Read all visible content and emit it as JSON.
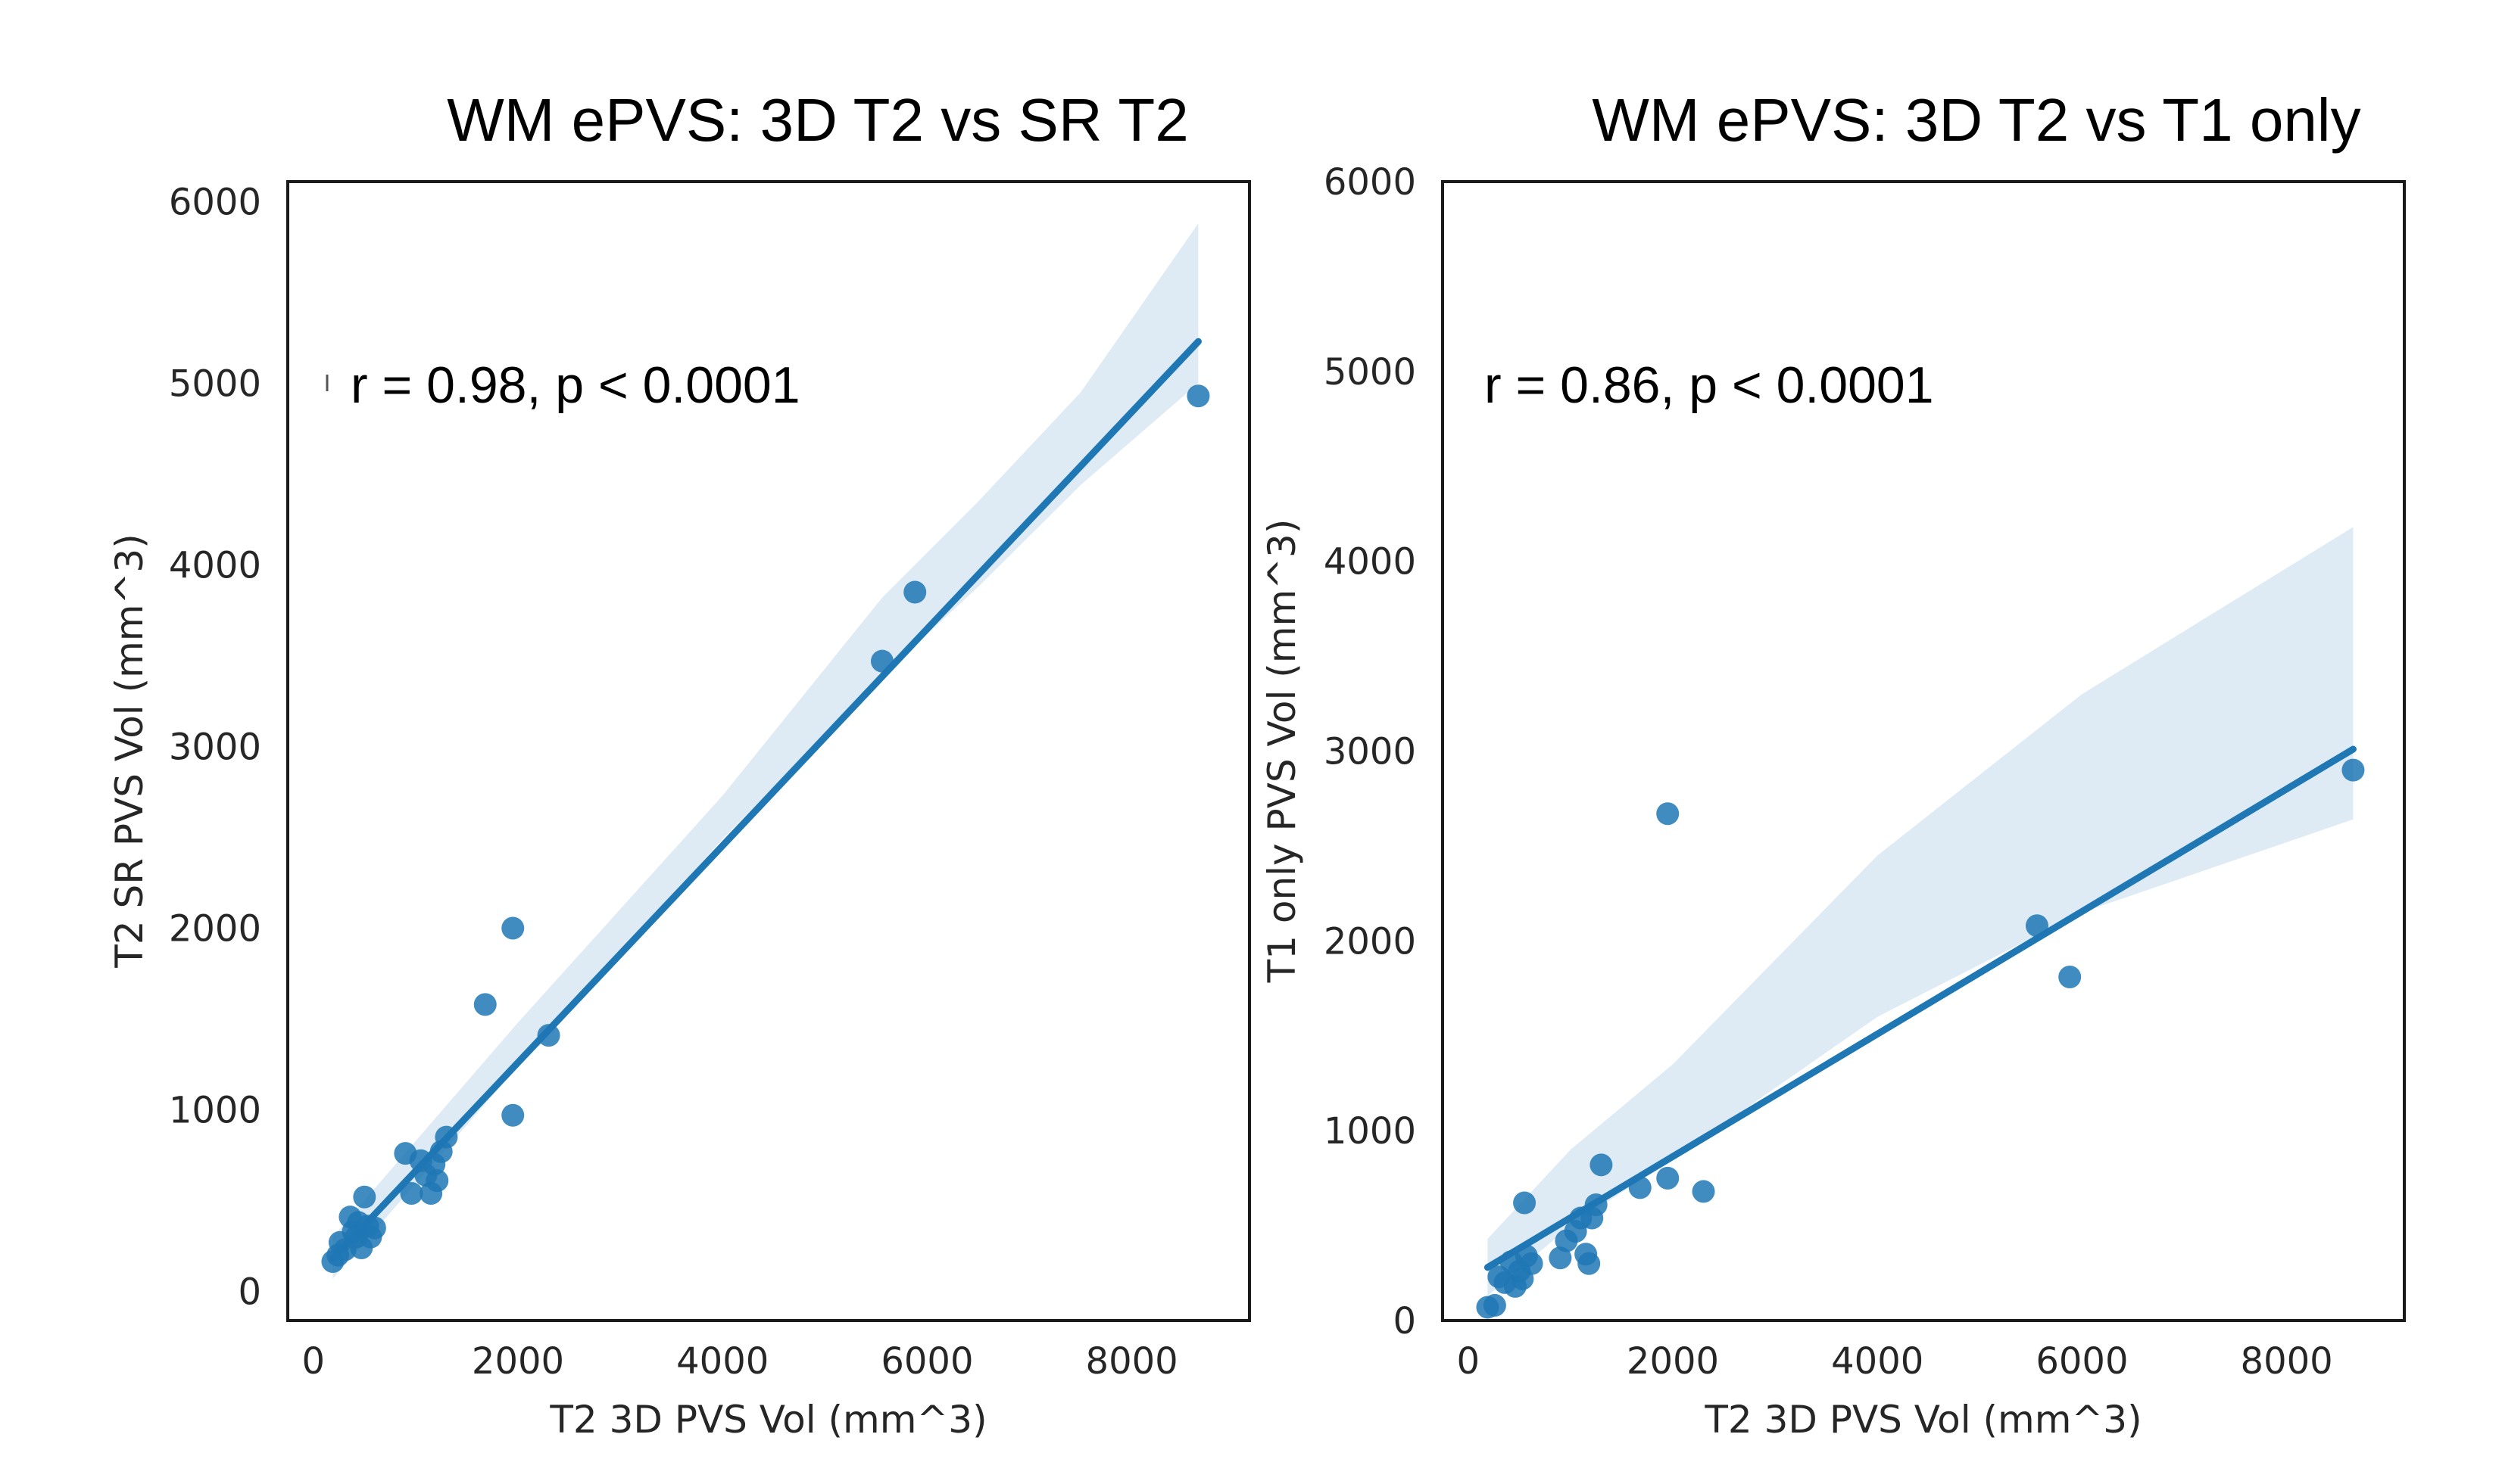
{
  "colors": {
    "series": "#1f77b4",
    "text": "#262626",
    "frame": "#1a1a1a"
  },
  "chart_data": [
    {
      "type": "scatter",
      "title": "WM ePVS: 3D T2 vs SR T2",
      "xlabel": "T2 3D PVS Vol (mm^3)",
      "ylabel": "T2 SR PVS Vol (mm^3)",
      "annotation": "r = 0.98, p < 0.0001",
      "xlim": [
        -250,
        9150
      ],
      "ylim": [
        -160,
        6110
      ],
      "xticks": [
        0,
        2000,
        4000,
        6000,
        8000
      ],
      "yticks": [
        0,
        1000,
        2000,
        3000,
        4000,
        5000,
        6000
      ],
      "xtick_labels": [
        "0",
        "2000",
        "4000",
        "6000",
        "8000"
      ],
      "ytick_labels": [
        "0",
        "1000",
        "2000",
        "3000",
        "4000",
        "5000",
        "6000"
      ],
      "grid": false,
      "points": [
        [
          190,
          165
        ],
        [
          240,
          200
        ],
        [
          260,
          270
        ],
        [
          310,
          230
        ],
        [
          360,
          410
        ],
        [
          390,
          330
        ],
        [
          420,
          300
        ],
        [
          440,
          380
        ],
        [
          470,
          240
        ],
        [
          500,
          520
        ],
        [
          530,
          360
        ],
        [
          560,
          300
        ],
        [
          600,
          350
        ],
        [
          900,
          760
        ],
        [
          960,
          540
        ],
        [
          1050,
          720
        ],
        [
          1100,
          640
        ],
        [
          1150,
          540
        ],
        [
          1180,
          700
        ],
        [
          1210,
          610
        ],
        [
          1250,
          770
        ],
        [
          1300,
          850
        ],
        [
          1680,
          1580
        ],
        [
          1950,
          2000
        ],
        [
          1950,
          970
        ],
        [
          2300,
          1410
        ],
        [
          5560,
          3470
        ],
        [
          5880,
          3850
        ],
        [
          8650,
          4930
        ]
      ],
      "regression": {
        "x": [
          190,
          8650
        ],
        "y": [
          180,
          5230
        ]
      },
      "ci_band": {
        "x": [
          190,
          2000,
          4000,
          5560,
          6500,
          7500,
          8650
        ],
        "upper": [
          300,
          1480,
          2730,
          3820,
          4350,
          4950,
          5880
        ],
        "lower": [
          70,
          1240,
          2490,
          3390,
          3880,
          4440,
          5000
        ]
      }
    },
    {
      "type": "scatter",
      "title": "WM ePVS: 3D T2 vs T1 only",
      "xlabel": "T2 3D PVS Vol (mm^3)",
      "ylabel": "T1 only PVS Vol (mm^3)",
      "annotation": "r = 0.86, p < 0.0001",
      "xlim": [
        -250,
        9150
      ],
      "ylim": [
        0,
        6000
      ],
      "xticks": [
        0,
        2000,
        4000,
        6000,
        8000
      ],
      "yticks": [
        0,
        1000,
        2000,
        3000,
        4000,
        5000,
        6000
      ],
      "xtick_labels": [
        "0",
        "2000",
        "4000",
        "6000",
        "8000"
      ],
      "ytick_labels": [
        "0",
        "1000",
        "2000",
        "3000",
        "4000",
        "5000",
        "6000"
      ],
      "grid": false,
      "points": [
        [
          190,
          70
        ],
        [
          260,
          80
        ],
        [
          300,
          230
        ],
        [
          360,
          200
        ],
        [
          420,
          310
        ],
        [
          460,
          180
        ],
        [
          500,
          260
        ],
        [
          530,
          220
        ],
        [
          550,
          620
        ],
        [
          570,
          340
        ],
        [
          620,
          300
        ],
        [
          900,
          330
        ],
        [
          960,
          420
        ],
        [
          1050,
          470
        ],
        [
          1100,
          540
        ],
        [
          1150,
          350
        ],
        [
          1180,
          300
        ],
        [
          1210,
          540
        ],
        [
          1250,
          610
        ],
        [
          1300,
          820
        ],
        [
          1680,
          700
        ],
        [
          1950,
          750
        ],
        [
          1950,
          2670
        ],
        [
          2300,
          680
        ],
        [
          5560,
          2080
        ],
        [
          5880,
          1810
        ],
        [
          8650,
          2900
        ]
      ],
      "regression": {
        "x": [
          190,
          8650
        ],
        "y": [
          280,
          3010
        ]
      },
      "ci_band": {
        "x": [
          190,
          1000,
          2000,
          4000,
          6000,
          8650
        ],
        "upper": [
          430,
          900,
          1350,
          2450,
          3300,
          4180
        ],
        "lower": [
          130,
          500,
          850,
          1600,
          2150,
          2640
        ]
      }
    }
  ]
}
